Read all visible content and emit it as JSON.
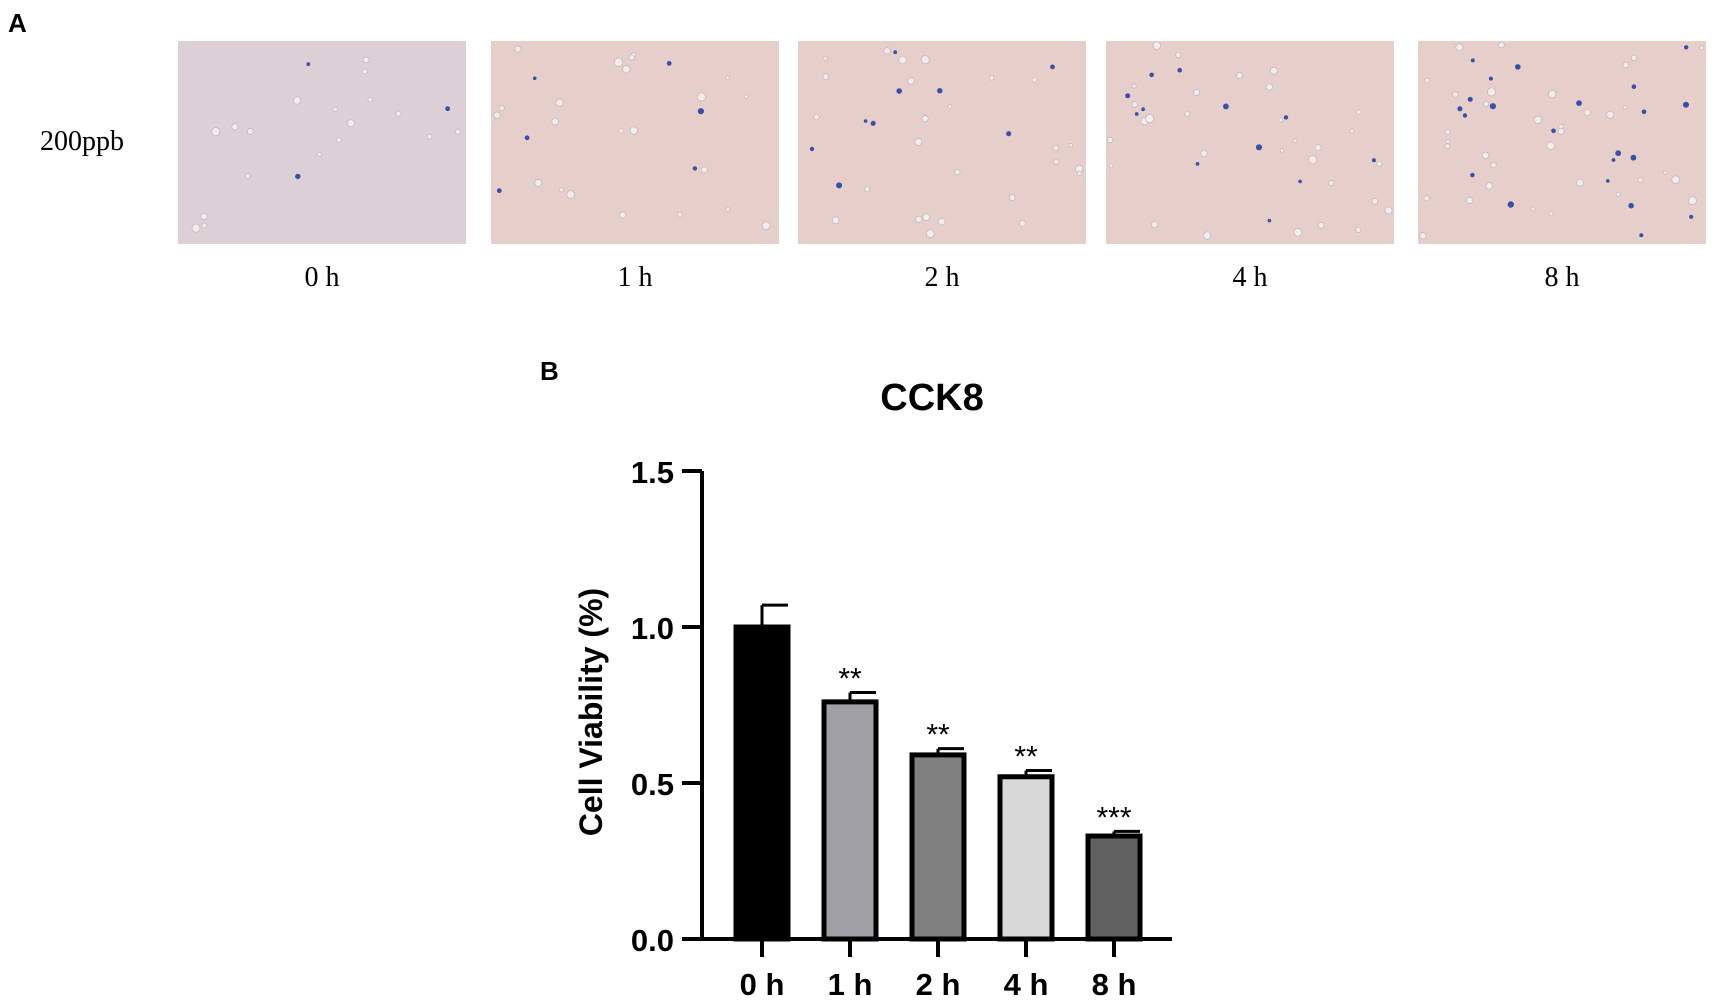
{
  "panel_a": {
    "letter": "A",
    "row_label": "200ppb",
    "images": [
      {
        "time": "0 h",
        "dead_cells": 3
      },
      {
        "time": "1 h",
        "dead_cells": 6
      },
      {
        "time": "2 h",
        "dead_cells": 9
      },
      {
        "time": "4 h",
        "dead_cells": 12
      },
      {
        "time": "8 h",
        "dead_cells": 22
      }
    ],
    "colors": {
      "background": "#dccfd6",
      "background_warm": "#e6cfcb",
      "dead_cell": "#3a4fa8",
      "live_cell": "#f3ecef"
    }
  },
  "panel_b": {
    "letter": "B"
  },
  "chart_data": {
    "type": "bar",
    "title": "CCK8",
    "xlabel": "",
    "ylabel": "Cell Viability (%)",
    "ylim": [
      0,
      1.5
    ],
    "yticks": [
      "0.0",
      "0.5",
      "1.0",
      "1.5"
    ],
    "categories": [
      "0 h",
      "1 h",
      "2 h",
      "4 h",
      "8 h"
    ],
    "values": [
      1.0,
      0.76,
      0.59,
      0.52,
      0.33
    ],
    "errors": [
      0.07,
      0.03,
      0.02,
      0.02,
      0.015
    ],
    "significance": [
      "",
      "**",
      "**",
      "**",
      "***"
    ],
    "bar_colors": [
      "#000000",
      "#a0a0a6",
      "#808080",
      "#d8d8d8",
      "#606060"
    ],
    "grid": false,
    "legend": "none"
  }
}
